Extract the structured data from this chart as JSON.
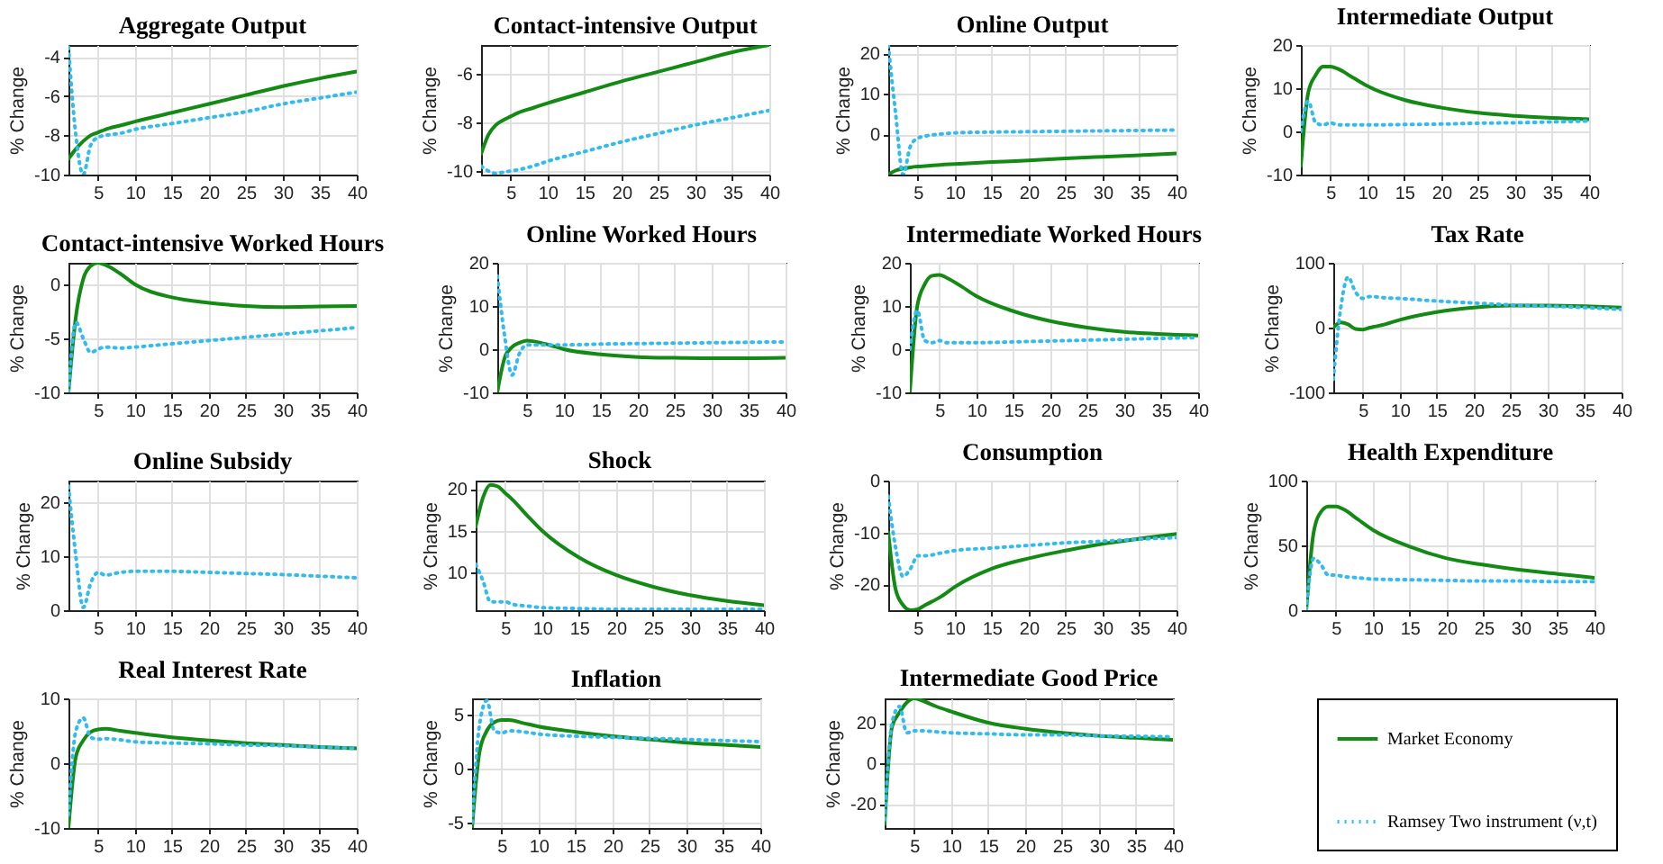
{
  "chart_data": [
    {
      "type": "line",
      "title": "Aggregate Output",
      "ylabel": "% Change",
      "x": [
        1,
        2,
        3,
        4,
        5,
        6,
        8,
        10,
        15,
        20,
        25,
        30,
        35,
        40
      ],
      "xlim": [
        1,
        40
      ],
      "xticks": [
        5,
        10,
        15,
        20,
        25,
        30,
        35,
        40
      ],
      "ylim": [
        -10,
        -3.4
      ],
      "yticks": [
        -10,
        -8,
        -6,
        -4
      ],
      "grid": true,
      "legend": false,
      "series": [
        {
          "color": "#138a13",
          "line_style": "solid",
          "values": [
            -9.2,
            -8.7,
            -8.3,
            -8.0,
            -7.85,
            -7.7,
            -7.5,
            -7.3,
            -6.85,
            -6.4,
            -5.95,
            -5.5,
            -5.1,
            -4.75
          ]
        },
        {
          "color": "#33bbee",
          "line_style": "dotted",
          "values": [
            -3.5,
            -8,
            -10,
            -8.5,
            -8.1,
            -8.0,
            -7.9,
            -7.7,
            -7.4,
            -7.1,
            -6.8,
            -6.4,
            -6.1,
            -5.8
          ]
        }
      ]
    },
    {
      "type": "line",
      "title": "Contact-intensive Output",
      "ylabel": "% Change",
      "x": [
        1,
        2,
        3,
        4,
        5,
        6,
        8,
        10,
        15,
        20,
        25,
        30,
        35,
        40
      ],
      "xlim": [
        1,
        40
      ],
      "xticks": [
        5,
        10,
        15,
        20,
        25,
        30,
        35,
        40
      ],
      "ylim": [
        -10.15,
        -4.8
      ],
      "yticks": [
        -10,
        -8,
        -6
      ],
      "grid": true,
      "legend": false,
      "series": [
        {
          "color": "#138a13",
          "line_style": "solid",
          "values": [
            -9.3,
            -8.5,
            -8.1,
            -7.9,
            -7.75,
            -7.6,
            -7.4,
            -7.2,
            -6.75,
            -6.3,
            -5.9,
            -5.5,
            -5.1,
            -4.8
          ]
        },
        {
          "color": "#33bbee",
          "line_style": "dotted",
          "values": [
            -9.8,
            -10,
            -10.1,
            -10.05,
            -10,
            -9.95,
            -9.8,
            -9.6,
            -9.2,
            -8.8,
            -8.45,
            -8.1,
            -7.8,
            -7.5
          ]
        }
      ]
    },
    {
      "type": "line",
      "title": "Online Output",
      "ylabel": "% Change",
      "x": [
        1,
        2,
        3,
        4,
        5,
        6,
        8,
        10,
        15,
        20,
        25,
        30,
        35,
        40
      ],
      "xlim": [
        1,
        40
      ],
      "xticks": [
        5,
        10,
        15,
        20,
        25,
        30,
        35,
        40
      ],
      "ylim": [
        -10,
        22
      ],
      "yticks": [
        0,
        10,
        20
      ],
      "grid": true,
      "legend": false,
      "series": [
        {
          "color": "#138a13",
          "line_style": "solid",
          "values": [
            -10,
            -9,
            -8.5,
            -8.2,
            -8.0,
            -7.9,
            -7.6,
            -7.4,
            -6.9,
            -6.5,
            -6.0,
            -5.6,
            -5.2,
            -4.8
          ]
        },
        {
          "color": "#33bbee",
          "line_style": "dotted",
          "values": [
            22,
            5,
            -10,
            -3,
            -1,
            -0.5,
            0,
            0.3,
            0.5,
            0.6,
            0.7,
            0.8,
            0.9,
            1
          ]
        }
      ]
    },
    {
      "type": "line",
      "title": "Intermediate Output",
      "ylabel": "% Change",
      "x": [
        1,
        2,
        3,
        4,
        5,
        6,
        8,
        10,
        15,
        20,
        25,
        30,
        35,
        40
      ],
      "xlim": [
        1,
        40
      ],
      "xticks": [
        5,
        10,
        15,
        20,
        25,
        30,
        35,
        40
      ],
      "ylim": [
        -10,
        20
      ],
      "yticks": [
        -10,
        0,
        10,
        20
      ],
      "grid": true,
      "legend": false,
      "series": [
        {
          "color": "#138a13",
          "line_style": "solid",
          "values": [
            -8,
            9,
            13,
            15,
            15,
            14.5,
            12.5,
            10.5,
            7.3,
            5.5,
            4.3,
            3.6,
            3.1,
            2.8
          ]
        },
        {
          "color": "#33bbee",
          "line_style": "dotted",
          "values": [
            0,
            7,
            2,
            1.5,
            2,
            1.5,
            1.5,
            1.5,
            1.6,
            1.7,
            1.9,
            2.0,
            2.2,
            2.4
          ]
        }
      ]
    },
    {
      "type": "line",
      "title": "Contact-intensive Worked Hours",
      "ylabel": "% Change",
      "x": [
        1,
        2,
        3,
        4,
        5,
        6,
        8,
        10,
        15,
        20,
        25,
        30,
        35,
        40
      ],
      "xlim": [
        1,
        40
      ],
      "xticks": [
        5,
        10,
        15,
        20,
        25,
        30,
        35,
        40
      ],
      "ylim": [
        -10,
        2
      ],
      "yticks": [
        -10,
        -5,
        0
      ],
      "grid": true,
      "legend": false,
      "series": [
        {
          "color": "#138a13",
          "line_style": "solid",
          "values": [
            -10,
            -3,
            0.5,
            1.7,
            2,
            1.8,
            1,
            0,
            -1.2,
            -1.7,
            -2,
            -2.1,
            -2.05,
            -2
          ]
        },
        {
          "color": "#33bbee",
          "line_style": "dotted",
          "values": [
            -10,
            -3.5,
            -5,
            -6.3,
            -6,
            -5.8,
            -5.9,
            -5.8,
            -5.5,
            -5.2,
            -4.9,
            -4.6,
            -4.3,
            -4
          ]
        }
      ]
    },
    {
      "type": "line",
      "title": "Online Worked Hours",
      "ylabel": "% Change",
      "x": [
        1,
        2,
        3,
        4,
        5,
        6,
        8,
        10,
        15,
        20,
        25,
        30,
        35,
        40
      ],
      "xlim": [
        1,
        40
      ],
      "xticks": [
        5,
        10,
        15,
        20,
        25,
        30,
        35,
        40
      ],
      "ylim": [
        -10,
        20
      ],
      "yticks": [
        -10,
        0,
        10,
        20
      ],
      "grid": true,
      "legend": false,
      "series": [
        {
          "color": "#138a13",
          "line_style": "solid",
          "values": [
            -10,
            -2,
            0.5,
            1.5,
            2,
            1.8,
            1,
            0,
            -1.2,
            -1.8,
            -2,
            -2.1,
            -2.1,
            -2
          ]
        },
        {
          "color": "#33bbee",
          "line_style": "dotted",
          "values": [
            17,
            3,
            -6,
            -1,
            1,
            1,
            1,
            1,
            1.2,
            1.3,
            1.4,
            1.5,
            1.6,
            1.7
          ]
        }
      ]
    },
    {
      "type": "line",
      "title": "Intermediate Worked Hours",
      "ylabel": "% Change",
      "x": [
        1,
        2,
        3,
        4,
        5,
        6,
        8,
        10,
        15,
        20,
        25,
        30,
        35,
        40
      ],
      "xlim": [
        1,
        40
      ],
      "xticks": [
        5,
        10,
        15,
        20,
        25,
        30,
        35,
        40
      ],
      "ylim": [
        -10,
        20
      ],
      "yticks": [
        -10,
        0,
        10,
        20
      ],
      "grid": true,
      "legend": false,
      "series": [
        {
          "color": "#138a13",
          "line_style": "solid",
          "values": [
            -10,
            10,
            15,
            17,
            17.2,
            16.5,
            14.5,
            12.3,
            8.8,
            6.5,
            5,
            4,
            3.5,
            3.2
          ]
        },
        {
          "color": "#33bbee",
          "line_style": "dotted",
          "values": [
            0,
            9,
            2,
            1.5,
            2,
            1.5,
            1.5,
            1.5,
            1.7,
            1.9,
            2.1,
            2.3,
            2.5,
            2.7
          ]
        }
      ]
    },
    {
      "type": "line",
      "title": "Tax Rate",
      "ylabel": "% Change",
      "x": [
        1,
        2,
        3,
        4,
        5,
        6,
        8,
        10,
        15,
        20,
        25,
        30,
        35,
        40
      ],
      "xlim": [
        1,
        40
      ],
      "xticks": [
        5,
        10,
        15,
        20,
        25,
        30,
        35,
        40
      ],
      "ylim": [
        -100,
        100
      ],
      "yticks": [
        -100,
        0,
        100
      ],
      "grid": true,
      "legend": false,
      "series": [
        {
          "color": "#138a13",
          "line_style": "solid",
          "values": [
            0,
            8,
            5,
            -2,
            -3,
            0,
            5,
            12,
            24,
            31,
            34,
            34,
            33,
            31
          ]
        },
        {
          "color": "#33bbee",
          "line_style": "dotted",
          "values": [
            -80,
            30,
            78,
            55,
            45,
            48,
            46,
            45,
            41,
            38,
            35,
            33,
            31,
            28
          ]
        }
      ]
    },
    {
      "type": "line",
      "title": "Online Subsidy",
      "ylabel": "% Change",
      "x": [
        1,
        2,
        3,
        4,
        5,
        6,
        8,
        10,
        15,
        20,
        25,
        30,
        35,
        40
      ],
      "xlim": [
        1,
        40
      ],
      "xticks": [
        5,
        10,
        15,
        20,
        25,
        30,
        35,
        40
      ],
      "ylim": [
        0,
        24
      ],
      "yticks": [
        0,
        10,
        20
      ],
      "grid": true,
      "legend": false,
      "series": [
        {
          "color": "#33bbee",
          "line_style": "dotted",
          "values": [
            23,
            10,
            0.5,
            5,
            7,
            6.5,
            7,
            7.2,
            7.2,
            7,
            6.8,
            6.6,
            6.3,
            6
          ]
        }
      ]
    },
    {
      "type": "line",
      "title": "Shock",
      "ylabel": "% Change",
      "x": [
        1,
        2,
        3,
        4,
        5,
        6,
        8,
        10,
        15,
        20,
        25,
        30,
        35,
        40
      ],
      "xlim": [
        1,
        40
      ],
      "xticks": [
        5,
        10,
        15,
        20,
        25,
        30,
        35,
        40
      ],
      "ylim": [
        5.5,
        21
      ],
      "yticks": [
        10,
        15,
        20
      ],
      "grid": true,
      "legend": false,
      "series": [
        {
          "color": "#138a13",
          "line_style": "solid",
          "values": [
            15.5,
            19,
            20.5,
            20.3,
            19.5,
            18.7,
            16.8,
            15,
            11.8,
            9.7,
            8.3,
            7.3,
            6.6,
            6.1
          ]
        },
        {
          "color": "#33bbee",
          "line_style": "dotted",
          "values": [
            11,
            9,
            6.5,
            6.5,
            6.5,
            6.2,
            6,
            5.8,
            5.7,
            5.6,
            5.6,
            5.6,
            5.6,
            5.6
          ]
        }
      ]
    },
    {
      "type": "line",
      "title": "Consumption",
      "ylabel": "% Change",
      "x": [
        1,
        2,
        3,
        4,
        5,
        6,
        8,
        10,
        15,
        20,
        25,
        30,
        35,
        40
      ],
      "xlim": [
        1,
        40
      ],
      "xticks": [
        5,
        10,
        15,
        20,
        25,
        30,
        35,
        40
      ],
      "ylim": [
        -25,
        0
      ],
      "yticks": [
        -20,
        -10,
        0
      ],
      "grid": true,
      "legend": false,
      "series": [
        {
          "color": "#138a13",
          "line_style": "solid",
          "values": [
            -10,
            -21,
            -24,
            -25,
            -24.8,
            -24,
            -22.5,
            -20.5,
            -17,
            -15,
            -13.5,
            -12.2,
            -11.2,
            -10.3
          ]
        },
        {
          "color": "#33bbee",
          "line_style": "dotted",
          "values": [
            -3,
            -13,
            -18.5,
            -17,
            -14.5,
            -14.5,
            -14,
            -13.5,
            -13,
            -12.5,
            -12,
            -11.7,
            -11.3,
            -11
          ]
        }
      ]
    },
    {
      "type": "line",
      "title": "Health Expenditure",
      "ylabel": "% Change",
      "x": [
        1,
        2,
        3,
        4,
        5,
        6,
        8,
        10,
        15,
        20,
        25,
        30,
        35,
        40
      ],
      "xlim": [
        1,
        40
      ],
      "xticks": [
        5,
        10,
        15,
        20,
        25,
        30,
        35,
        40
      ],
      "ylim": [
        0,
        100
      ],
      "yticks": [
        0,
        50,
        100
      ],
      "grid": true,
      "legend": false,
      "series": [
        {
          "color": "#138a13",
          "line_style": "solid",
          "values": [
            0,
            60,
            76,
            80,
            80,
            78,
            70,
            62,
            49,
            40,
            35,
            31,
            28,
            25
          ]
        },
        {
          "color": "#33bbee",
          "line_style": "dotted",
          "values": [
            0,
            40,
            35,
            27,
            27,
            26,
            25,
            24,
            23.5,
            23,
            22.5,
            22.5,
            22,
            22
          ]
        }
      ]
    },
    {
      "type": "line",
      "title": "Real Interest Rate",
      "ylabel": "% Change",
      "x": [
        1,
        2,
        3,
        4,
        5,
        6,
        8,
        10,
        15,
        20,
        25,
        30,
        35,
        40
      ],
      "xlim": [
        1,
        40
      ],
      "xticks": [
        5,
        10,
        15,
        20,
        25,
        30,
        35,
        40
      ],
      "ylim": [
        -10,
        10
      ],
      "yticks": [
        -10,
        0,
        10
      ],
      "grid": true,
      "legend": false,
      "series": [
        {
          "color": "#138a13",
          "line_style": "solid",
          "values": [
            -10,
            1,
            3.5,
            4.8,
            5.2,
            5.3,
            5,
            4.7,
            4,
            3.5,
            3.1,
            2.8,
            2.5,
            2.3
          ]
        },
        {
          "color": "#33bbee",
          "line_style": "dotted",
          "values": [
            -8,
            5,
            7,
            4,
            3.7,
            3.8,
            3.6,
            3.3,
            3.1,
            3,
            2.8,
            2.7,
            2.5,
            2.3
          ]
        }
      ]
    },
    {
      "type": "line",
      "title": "Inflation",
      "ylabel": "% Change",
      "x": [
        1,
        2,
        3,
        4,
        5,
        6,
        8,
        10,
        15,
        20,
        25,
        30,
        35,
        40
      ],
      "xlim": [
        1,
        40
      ],
      "xticks": [
        5,
        10,
        15,
        20,
        25,
        30,
        35,
        40
      ],
      "ylim": [
        -5.5,
        6.5
      ],
      "yticks": [
        -5,
        0,
        5
      ],
      "grid": true,
      "legend": false,
      "series": [
        {
          "color": "#138a13",
          "line_style": "solid",
          "values": [
            -5.5,
            1.5,
            3.5,
            4.3,
            4.5,
            4.5,
            4.2,
            3.9,
            3.4,
            3,
            2.7,
            2.4,
            2.2,
            2.0
          ]
        },
        {
          "color": "#33bbee",
          "line_style": "dotted",
          "values": [
            -5,
            4,
            6.3,
            3.5,
            3.3,
            3.5,
            3.4,
            3.2,
            3,
            2.9,
            2.8,
            2.7,
            2.6,
            2.5
          ]
        }
      ]
    },
    {
      "type": "line",
      "title": "Intermediate Good Price",
      "ylabel": "% Change",
      "x": [
        1,
        2,
        3,
        4,
        5,
        6,
        8,
        10,
        15,
        20,
        25,
        30,
        35,
        40
      ],
      "xlim": [
        1,
        40
      ],
      "xticks": [
        5,
        10,
        15,
        20,
        25,
        30,
        35,
        40
      ],
      "ylim": [
        -32,
        32
      ],
      "yticks": [
        -20,
        0,
        20
      ],
      "grid": true,
      "legend": "right",
      "series": [
        {
          "name": "Market Economy",
          "color": "#138a13",
          "line_style": "solid",
          "values": [
            -30,
            18,
            25,
            30,
            32,
            31,
            28,
            25.5,
            20,
            17,
            15,
            13.5,
            12.5,
            11.5
          ]
        },
        {
          "name": "Ramsey Two instrument (ν,t)",
          "color": "#33bbee",
          "line_style": "dotted",
          "values": [
            -28,
            20,
            28,
            15,
            16,
            16,
            15.5,
            15,
            14.5,
            14,
            14,
            13.5,
            13.3,
            13
          ]
        }
      ]
    }
  ]
}
